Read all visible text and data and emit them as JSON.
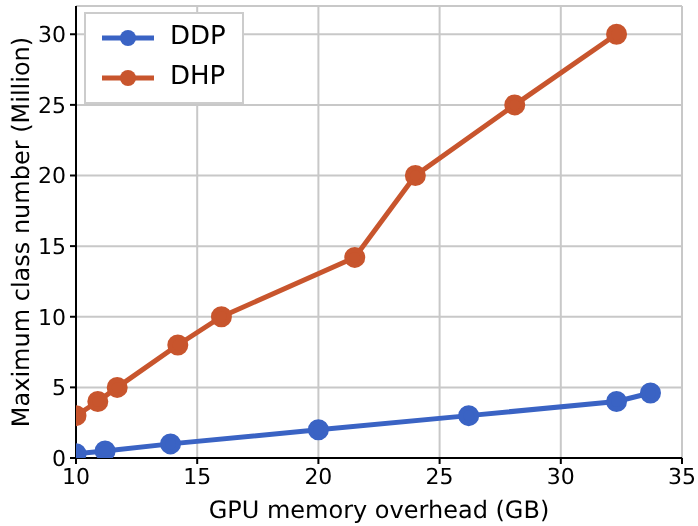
{
  "chart_data": {
    "type": "line",
    "xlabel": "GPU memory overhead (GB)",
    "ylabel": "Maximum class number (Million)",
    "xlim": [
      10,
      35
    ],
    "xticks": [
      10,
      15,
      20,
      25,
      30,
      35
    ],
    "ylim": [
      0,
      32
    ],
    "yticks": [
      0,
      5,
      10,
      15,
      20,
      25,
      30
    ],
    "grid": true,
    "legend": "top left",
    "marker": "circle",
    "line_style": "solid",
    "series": [
      {
        "name": "DDP",
        "color": "#3a63c4",
        "x": [
          10,
          11.2,
          13.9,
          20,
          26.2,
          32.3,
          33.7
        ],
        "values": [
          0.3,
          0.5,
          1,
          2,
          3,
          4,
          4.6
        ]
      },
      {
        "name": "DHP",
        "color": "#c8552d",
        "x": [
          10,
          10.9,
          11.7,
          14.2,
          16,
          21.5,
          24,
          28.1,
          32.3
        ],
        "values": [
          3,
          4,
          5,
          8,
          10,
          14.2,
          20,
          25,
          30
        ]
      }
    ]
  }
}
